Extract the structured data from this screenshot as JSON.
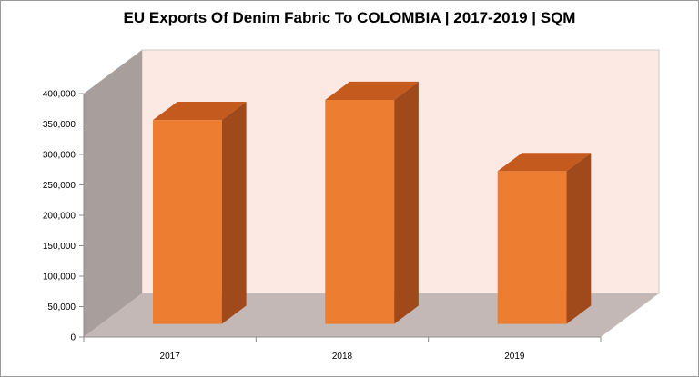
{
  "chart_data": {
    "type": "bar",
    "title": "EU Exports Of Denim Fabric To COLOMBIA  |  2017-2019  |  SQM",
    "xlabel": "",
    "ylabel": "",
    "categories": [
      "2017",
      "2018",
      "2019"
    ],
    "values": [
      335000,
      368000,
      251000
    ],
    "ylim": [
      0,
      400000
    ],
    "yticks": [
      0,
      50000,
      100000,
      150000,
      200000,
      250000,
      300000,
      350000,
      400000
    ],
    "ytick_labels": [
      "0",
      "50,000",
      "100,000",
      "150,000",
      "200,000",
      "250,000",
      "300,000",
      "350,000",
      "400,000"
    ],
    "grid": false,
    "legend": "none",
    "style": "3d-column",
    "colors": {
      "bar_front": "#ED7D31",
      "bar_side": "#A0491A",
      "bar_top": "#C55A1E",
      "back_wall": "#FDE9E3",
      "side_wall": "#A89E9C",
      "floor": "#C3B8B5"
    }
  }
}
